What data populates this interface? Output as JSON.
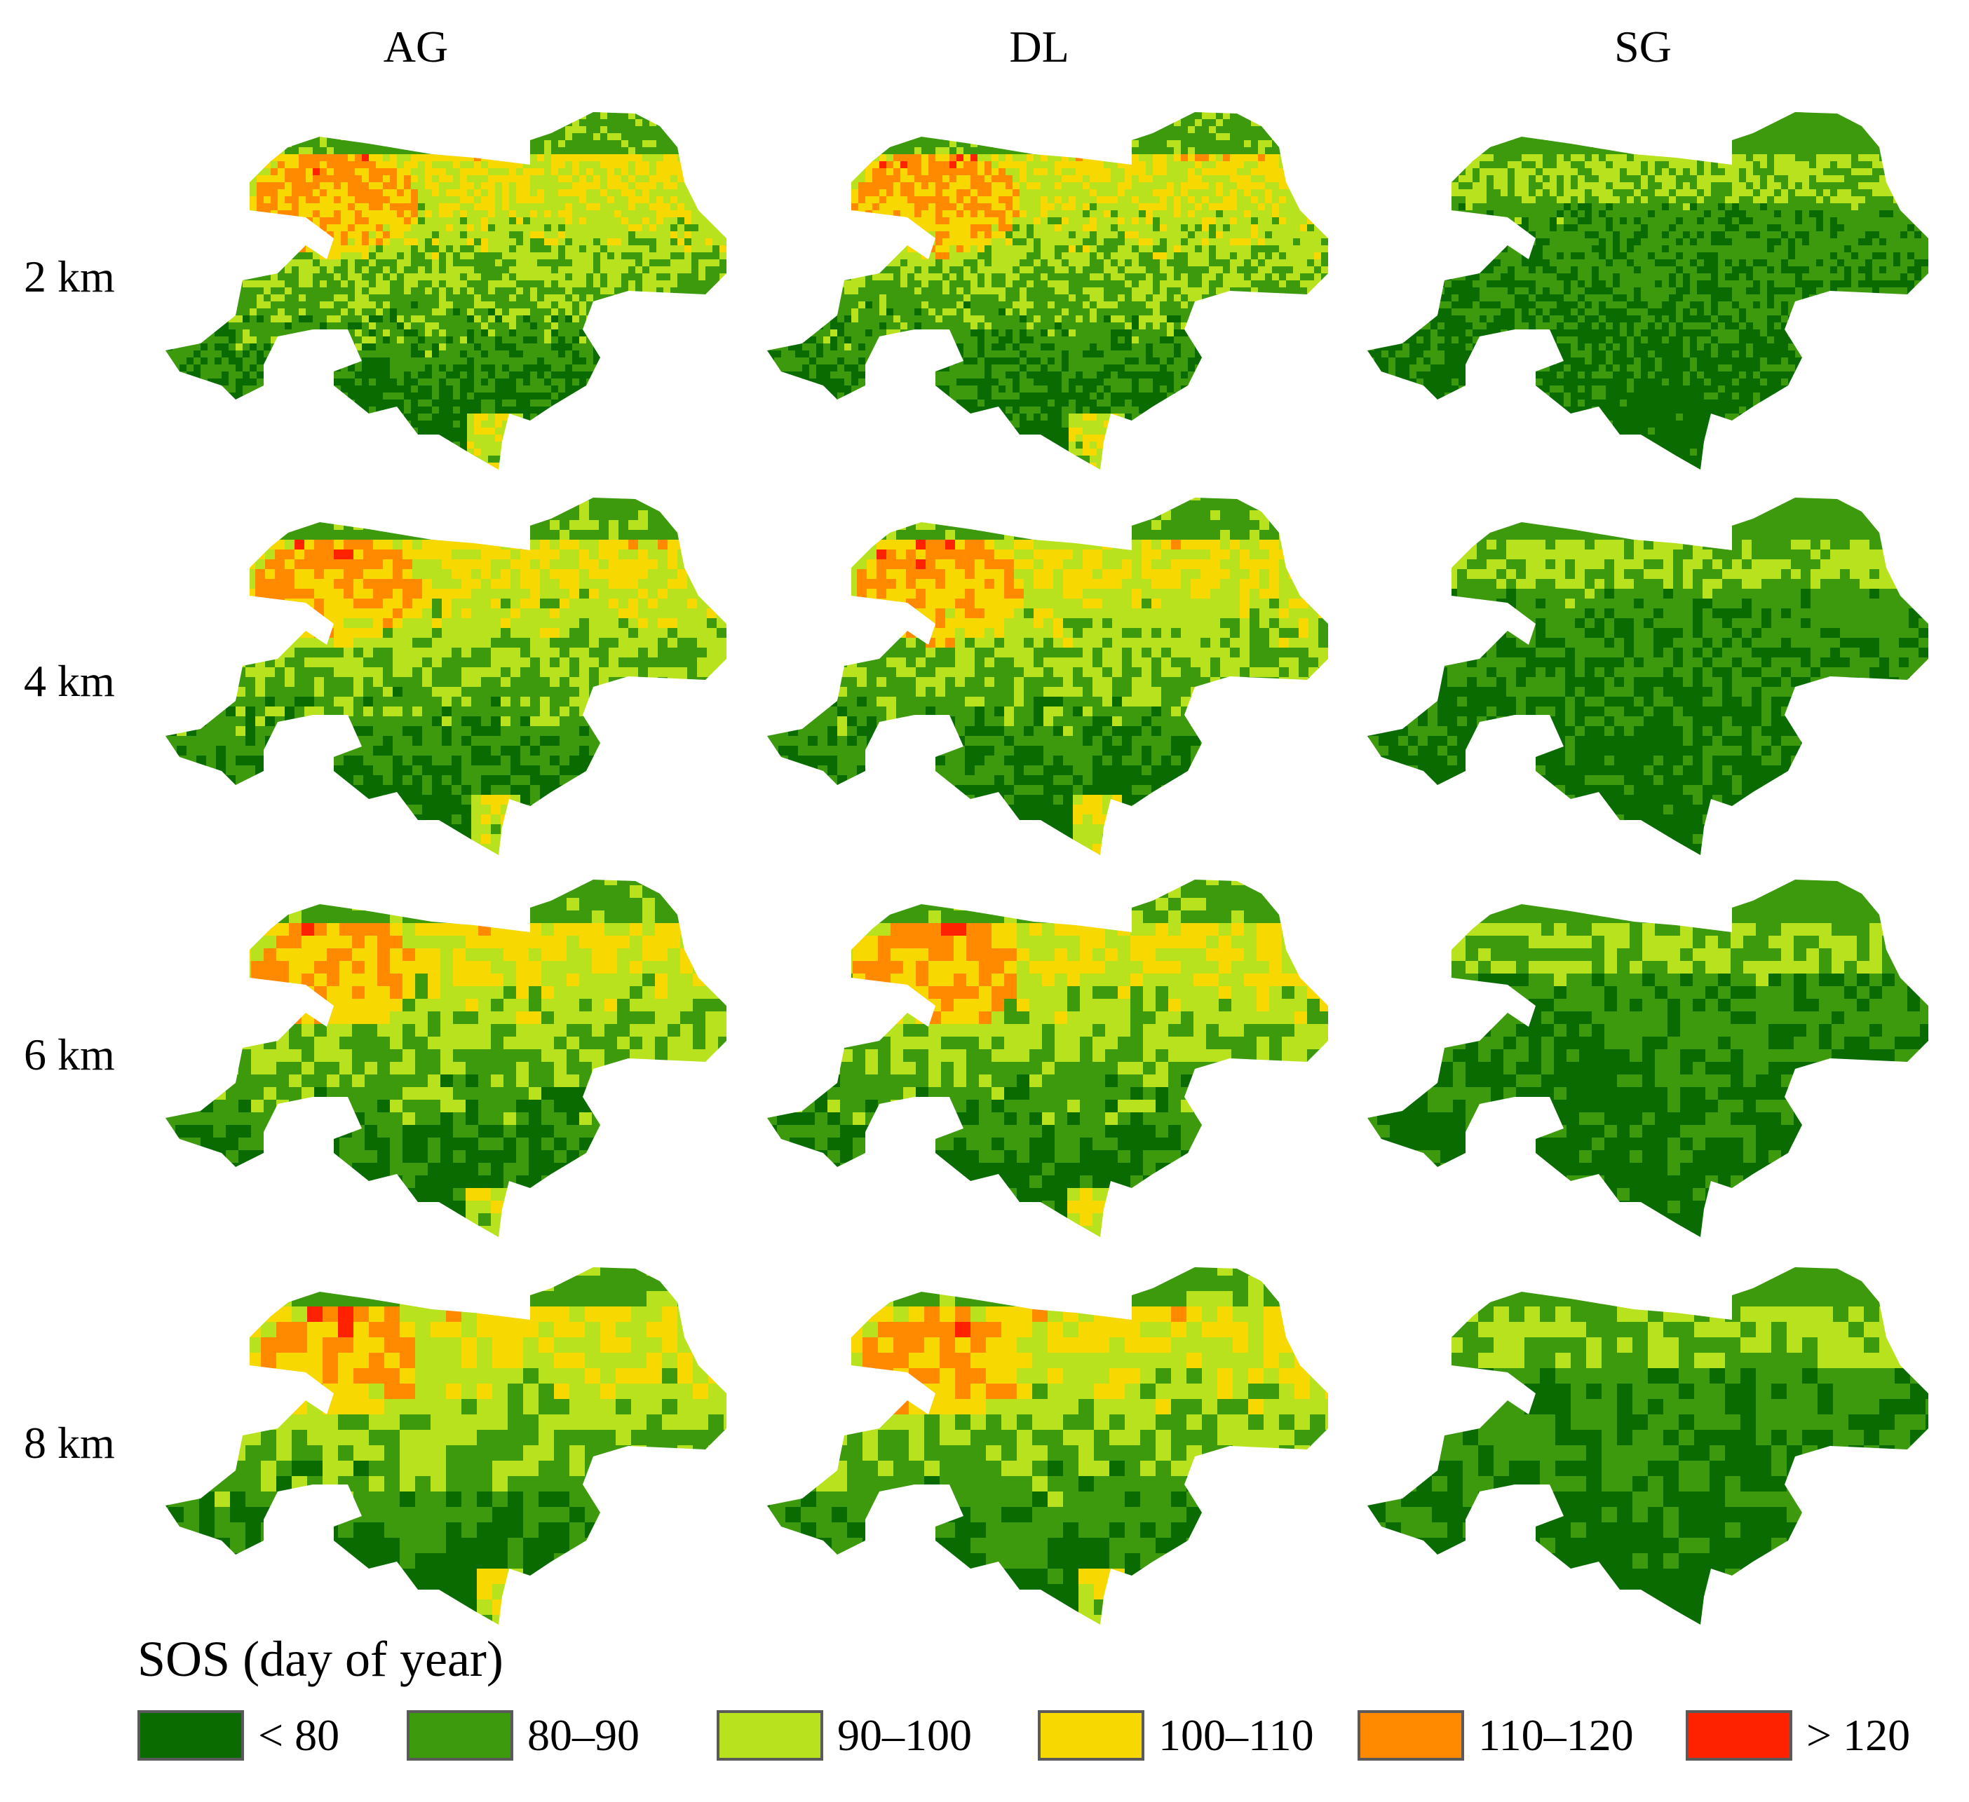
{
  "columns": [
    "AG",
    "DL",
    "SG"
  ],
  "rows": [
    "2 km",
    "4 km",
    "6 km",
    "8 km"
  ],
  "legend": {
    "title": "SOS (day of year)",
    "items": [
      {
        "label": "< 80",
        "color": "#0a6b00"
      },
      {
        "label": "80–90",
        "color": "#3c9a0c"
      },
      {
        "label": "90–100",
        "color": "#b8e21e"
      },
      {
        "label": "100–110",
        "color": "#f7d800"
      },
      {
        "label": "110–120",
        "color": "#ff8a00"
      },
      {
        "label": "> 120",
        "color": "#ff2200"
      }
    ]
  },
  "palette": {
    "dark_green": "#0a6b00",
    "green": "#3c9a0c",
    "yellow_green": "#b8e21e",
    "yellow": "#f7d800",
    "orange": "#ff8a00",
    "red": "#ff2200"
  }
}
